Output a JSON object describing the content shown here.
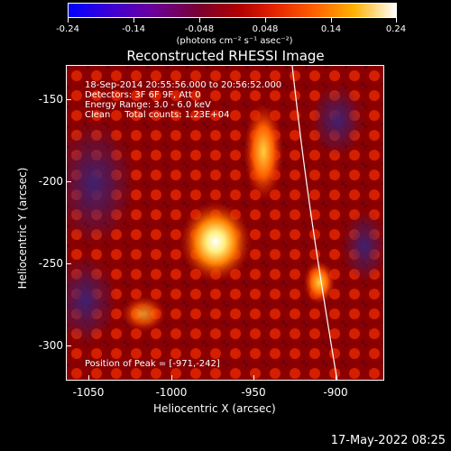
{
  "colorbar": {
    "tick_labels": [
      "-0.24",
      "-0.14",
      "-0.048",
      "0.048",
      "0.14",
      "0.24"
    ],
    "units": "(photons cm⁻² s⁻¹ asec⁻²)"
  },
  "title": "Reconstructed RHESSI Image",
  "annotations": {
    "time": "18-Sep-2014 20:55:56.000 to 20:56:52.000",
    "detectors": "Detectors: 3F 6F 9F, Att 0",
    "energy": "Energy Range: 3.0 - 6.0 keV",
    "clean": "Clean     Total counts: 1.23E+04",
    "peak": "Position of Peak = [-971,-242]"
  },
  "axes": {
    "xlabel": "Heliocentric X (arcsec)",
    "ylabel": "Heliocentric Y (arcsec)",
    "x_ticks": [
      "-1050",
      "-1000",
      "-950",
      "-900"
    ],
    "y_ticks": [
      "-150",
      "-200",
      "-250",
      "-300"
    ]
  },
  "footer": "17-May-2022 08:25"
}
